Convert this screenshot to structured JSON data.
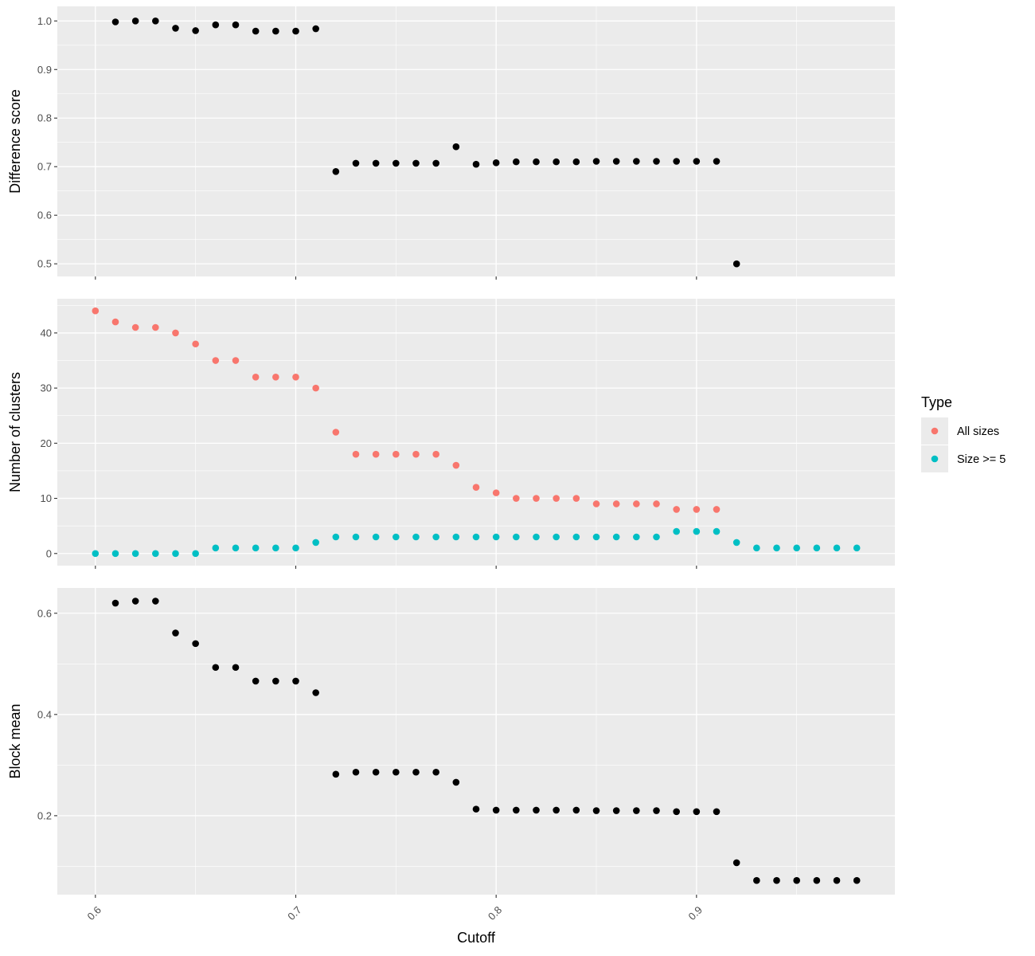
{
  "chart_data": [
    {
      "type": "scatter",
      "ylabel": "Difference score",
      "ylim": [
        0.474,
        1.03
      ],
      "yticks": [
        0.5,
        0.6,
        0.7,
        0.8,
        0.9,
        1.0
      ],
      "ytick_labels": [
        "0.5",
        "0.6",
        "0.7",
        "0.8",
        "0.9",
        "1.0"
      ],
      "series": [
        {
          "name": "Difference score",
          "color": "#000000",
          "x": [
            0.61,
            0.62,
            0.63,
            0.64,
            0.65,
            0.66,
            0.67,
            0.68,
            0.69,
            0.7,
            0.71,
            0.72,
            0.73,
            0.74,
            0.75,
            0.76,
            0.77,
            0.78,
            0.79,
            0.8,
            0.81,
            0.82,
            0.83,
            0.84,
            0.85,
            0.86,
            0.87,
            0.88,
            0.89,
            0.9,
            0.91,
            0.92
          ],
          "y": [
            0.998,
            1.0,
            1.0,
            0.985,
            0.98,
            0.992,
            0.992,
            0.979,
            0.979,
            0.979,
            0.984,
            0.69,
            0.707,
            0.707,
            0.707,
            0.707,
            0.707,
            0.741,
            0.705,
            0.708,
            0.71,
            0.71,
            0.71,
            0.71,
            0.711,
            0.711,
            0.711,
            0.711,
            0.711,
            0.711,
            0.711,
            0.5
          ]
        }
      ]
    },
    {
      "type": "scatter",
      "ylabel": "Number of clusters",
      "ylim": [
        -2.2,
        46.2
      ],
      "yticks": [
        0,
        10,
        20,
        30,
        40
      ],
      "ytick_labels": [
        "0",
        "10",
        "20",
        "30",
        "40"
      ],
      "legend": {
        "title": "Type",
        "position": "right"
      },
      "series": [
        {
          "name": "All sizes",
          "color": "#F8766D",
          "x": [
            0.6,
            0.61,
            0.62,
            0.63,
            0.64,
            0.65,
            0.66,
            0.67,
            0.68,
            0.69,
            0.7,
            0.71,
            0.72,
            0.73,
            0.74,
            0.75,
            0.76,
            0.77,
            0.78,
            0.79,
            0.8,
            0.81,
            0.82,
            0.83,
            0.84,
            0.85,
            0.86,
            0.87,
            0.88,
            0.89,
            0.9,
            0.91
          ],
          "y": [
            44,
            42,
            41,
            41,
            40,
            38,
            35,
            35,
            32,
            32,
            32,
            30,
            22,
            18,
            18,
            18,
            18,
            18,
            16,
            12,
            11,
            10,
            10,
            10,
            10,
            9,
            9,
            9,
            9,
            8,
            8,
            8
          ]
        },
        {
          "name": "Size >= 5",
          "color": "#00BFC4",
          "x": [
            0.6,
            0.61,
            0.62,
            0.63,
            0.64,
            0.65,
            0.66,
            0.67,
            0.68,
            0.69,
            0.7,
            0.71,
            0.72,
            0.73,
            0.74,
            0.75,
            0.76,
            0.77,
            0.78,
            0.79,
            0.8,
            0.81,
            0.82,
            0.83,
            0.84,
            0.85,
            0.86,
            0.87,
            0.88,
            0.89,
            0.9,
            0.91,
            0.92,
            0.93,
            0.94,
            0.95,
            0.96,
            0.97,
            0.98
          ],
          "y": [
            0,
            0,
            0,
            0,
            0,
            0,
            1,
            1,
            1,
            1,
            1,
            2,
            3,
            3,
            3,
            3,
            3,
            3,
            3,
            3,
            3,
            3,
            3,
            3,
            3,
            3,
            3,
            3,
            3,
            4,
            4,
            4,
            2,
            1,
            1,
            1,
            1,
            1,
            1
          ]
        }
      ]
    },
    {
      "type": "scatter",
      "ylabel": "Block mean",
      "xlabel": "Cutoff",
      "ylim": [
        0.044,
        0.65
      ],
      "yticks": [
        0.2,
        0.4,
        0.6
      ],
      "ytick_labels": [
        "0.2",
        "0.4",
        "0.6"
      ],
      "series": [
        {
          "name": "Block mean",
          "color": "#000000",
          "x": [
            0.61,
            0.62,
            0.63,
            0.64,
            0.65,
            0.66,
            0.67,
            0.68,
            0.69,
            0.7,
            0.71,
            0.72,
            0.73,
            0.74,
            0.75,
            0.76,
            0.77,
            0.78,
            0.79,
            0.8,
            0.81,
            0.82,
            0.83,
            0.84,
            0.85,
            0.86,
            0.87,
            0.88,
            0.89,
            0.9,
            0.91,
            0.92,
            0.93,
            0.94,
            0.95,
            0.96,
            0.97,
            0.98
          ],
          "y": [
            0.62,
            0.624,
            0.624,
            0.561,
            0.54,
            0.493,
            0.493,
            0.466,
            0.466,
            0.466,
            0.443,
            0.282,
            0.286,
            0.286,
            0.286,
            0.286,
            0.286,
            0.266,
            0.213,
            0.211,
            0.211,
            0.211,
            0.211,
            0.211,
            0.21,
            0.21,
            0.21,
            0.21,
            0.208,
            0.208,
            0.208,
            0.107,
            0.072,
            0.072,
            0.072,
            0.072,
            0.072,
            0.072
          ]
        }
      ]
    }
  ],
  "shared_x": {
    "xlim": [
      0.581,
      0.999
    ],
    "xticks": [
      0.6,
      0.7,
      0.8,
      0.9
    ],
    "xtick_labels": [
      "0.6",
      "0.7",
      "0.8",
      "0.9"
    ],
    "xlabel": "Cutoff"
  }
}
